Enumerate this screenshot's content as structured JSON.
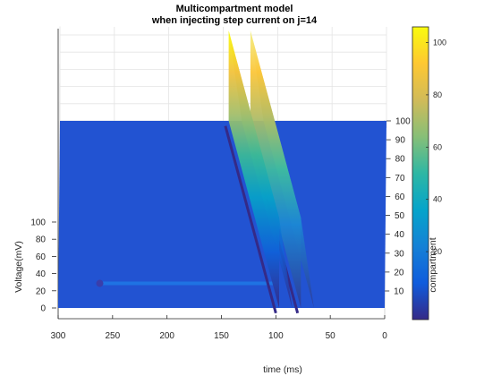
{
  "chart_data": {
    "type": "surface",
    "title": "Multicompartment model",
    "subtitle": "when injecting step current on j=14",
    "xlabel": "time (ms)",
    "ylabel": "Voltage(mV)",
    "depth_label": "compartment",
    "x_ticks": [
      300,
      250,
      200,
      150,
      100,
      50,
      0
    ],
    "x_range": [
      0,
      300
    ],
    "y_ticks": [
      0,
      20,
      40,
      60,
      80,
      100
    ],
    "y_range": [
      -6,
      106
    ],
    "depth_ticks": [
      10,
      20,
      30,
      40,
      50,
      60,
      70,
      80,
      90,
      100
    ],
    "depth_range": [
      1,
      100
    ],
    "colorbar": {
      "ticks": [
        20,
        40,
        60,
        80,
        100
      ],
      "range": [
        -6,
        106
      ],
      "colormap": "parula"
    },
    "resting_voltage": 0,
    "stimulated_compartment": 14,
    "spike_peak_voltage": 105,
    "spikes": [
      {
        "time_at_front_compartment": 145,
        "time_at_back_compartment": 97
      },
      {
        "time_at_front_compartment": 125,
        "time_at_back_compartment": 77
      }
    ],
    "grid": true,
    "colors": {
      "resting_surface": "#2253d2",
      "spike_low": "#352a87",
      "spike_high": "#f9fb0e"
    }
  }
}
